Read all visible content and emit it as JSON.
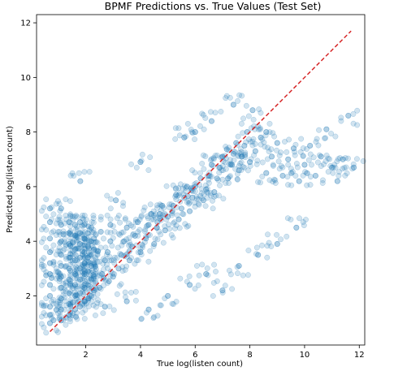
{
  "chart_data": {
    "type": "scatter",
    "title": "BPMF Predictions vs. True Values (Test Set)",
    "xlabel": "True log(listen count)",
    "ylabel": "Predicted log(listen count)",
    "xlim": [
      0.2,
      12.2
    ],
    "ylim": [
      0.2,
      12.3
    ],
    "xticks": [
      2,
      4,
      6,
      8,
      10,
      12
    ],
    "yticks": [
      2,
      4,
      6,
      8,
      10,
      12
    ],
    "xtick_labels": [
      "2",
      "4",
      "6",
      "8",
      "10",
      "12"
    ],
    "ytick_labels": [
      "2",
      "4",
      "6",
      "8",
      "10",
      "12"
    ],
    "grid": false,
    "legend": "none",
    "point_color": "#1f77b4",
    "point_alpha": 0.2,
    "reference_line": {
      "style": "dashed",
      "color": "#d62728",
      "x": [
        0.69,
        11.7
      ],
      "y": [
        0.69,
        11.7
      ]
    },
    "series": [
      {
        "description_points": [
          [
            0.69,
            1.0
          ],
          [
            0.69,
            1.3
          ],
          [
            0.69,
            1.6
          ],
          [
            0.69,
            2.0
          ],
          [
            0.69,
            2.4
          ],
          [
            0.69,
            2.8
          ],
          [
            0.69,
            3.2
          ],
          [
            0.69,
            3.6
          ],
          [
            0.69,
            4.1
          ],
          [
            0.69,
            4.7
          ],
          [
            0.69,
            5.2
          ],
          [
            1.1,
            1.1
          ],
          [
            1.1,
            1.5
          ],
          [
            1.1,
            1.9
          ],
          [
            1.1,
            2.3
          ],
          [
            1.1,
            2.7
          ],
          [
            1.1,
            3.1
          ],
          [
            1.1,
            3.5
          ],
          [
            1.1,
            4.0
          ],
          [
            1.1,
            4.6
          ],
          [
            1.1,
            5.2
          ],
          [
            1.39,
            1.3
          ],
          [
            1.39,
            1.7
          ],
          [
            1.39,
            2.1
          ],
          [
            1.39,
            2.6
          ],
          [
            1.39,
            3.0
          ],
          [
            1.39,
            3.4
          ],
          [
            1.39,
            3.9
          ],
          [
            1.39,
            4.3
          ],
          [
            1.39,
            4.7
          ],
          [
            1.61,
            1.5
          ],
          [
            1.61,
            2.0
          ],
          [
            1.61,
            2.4
          ],
          [
            1.61,
            2.8
          ],
          [
            1.61,
            3.3
          ],
          [
            1.61,
            3.7
          ],
          [
            1.61,
            4.2
          ],
          [
            1.61,
            4.6
          ],
          [
            1.79,
            1.6
          ],
          [
            1.79,
            2.1
          ],
          [
            1.79,
            2.6
          ],
          [
            1.79,
            3.0
          ],
          [
            1.79,
            3.4
          ],
          [
            1.79,
            3.9
          ],
          [
            1.79,
            4.3
          ],
          [
            1.79,
            4.7
          ],
          [
            1.95,
            1.8
          ],
          [
            1.95,
            2.3
          ],
          [
            1.95,
            2.8
          ],
          [
            1.95,
            3.2
          ],
          [
            1.95,
            3.6
          ],
          [
            1.95,
            4.1
          ],
          [
            1.95,
            4.6
          ],
          [
            2.08,
            1.9
          ],
          [
            2.08,
            2.4
          ],
          [
            2.08,
            2.9
          ],
          [
            2.08,
            3.4
          ],
          [
            2.08,
            3.8
          ],
          [
            2.08,
            4.3
          ],
          [
            2.2,
            2.0
          ],
          [
            2.2,
            2.6
          ],
          [
            2.2,
            3.1
          ],
          [
            2.2,
            3.5
          ],
          [
            2.2,
            4.0
          ],
          [
            2.2,
            4.5
          ],
          [
            2.3,
            2.2
          ],
          [
            2.3,
            2.7
          ],
          [
            2.3,
            3.2
          ],
          [
            2.3,
            3.7
          ],
          [
            2.3,
            4.1
          ],
          [
            2.5,
            2.3
          ],
          [
            2.6,
            2.8
          ],
          [
            2.7,
            3.3
          ],
          [
            2.8,
            3.6
          ],
          [
            2.9,
            4.0
          ],
          [
            2.9,
            4.6
          ],
          [
            3.0,
            2.7
          ],
          [
            3.2,
            3.0
          ],
          [
            3.3,
            3.5
          ],
          [
            3.4,
            4.0
          ],
          [
            3.5,
            4.5
          ],
          [
            3.6,
            3.3
          ],
          [
            3.7,
            3.8
          ],
          [
            3.8,
            4.2
          ],
          [
            3.9,
            4.7
          ],
          [
            4.0,
            3.6
          ],
          [
            4.2,
            4.1
          ],
          [
            4.3,
            4.6
          ],
          [
            4.4,
            5.0
          ],
          [
            4.5,
            3.9
          ],
          [
            4.6,
            4.5
          ],
          [
            4.7,
            5.0
          ],
          [
            4.8,
            5.3
          ],
          [
            4.9,
            4.4
          ],
          [
            5.0,
            4.9
          ],
          [
            5.2,
            5.3
          ],
          [
            5.3,
            5.7
          ],
          [
            5.4,
            4.8
          ],
          [
            5.5,
            5.2
          ],
          [
            5.6,
            5.6
          ],
          [
            5.7,
            6.0
          ],
          [
            5.8,
            5.1
          ],
          [
            5.9,
            5.6
          ],
          [
            6.0,
            6.0
          ],
          [
            6.2,
            6.3
          ],
          [
            6.3,
            5.5
          ],
          [
            6.4,
            5.9
          ],
          [
            6.5,
            6.4
          ],
          [
            6.6,
            6.8
          ],
          [
            6.7,
            5.8
          ],
          [
            6.8,
            6.3
          ],
          [
            6.9,
            6.7
          ],
          [
            7.0,
            7.1
          ],
          [
            7.2,
            6.3
          ],
          [
            7.3,
            6.8
          ],
          [
            7.4,
            7.2
          ],
          [
            7.5,
            7.6
          ],
          [
            7.6,
            6.6
          ],
          [
            7.7,
            7.1
          ],
          [
            7.8,
            7.5
          ],
          [
            7.9,
            8.0
          ],
          [
            8.0,
            6.9
          ],
          [
            8.2,
            7.3
          ],
          [
            8.4,
            7.8
          ],
          [
            8.6,
            6.5
          ],
          [
            8.8,
            7.1
          ],
          [
            9.0,
            7.6
          ],
          [
            9.2,
            6.4
          ],
          [
            9.4,
            7.0
          ],
          [
            9.6,
            7.4
          ],
          [
            9.8,
            6.2
          ],
          [
            10.0,
            6.8
          ],
          [
            10.2,
            7.5
          ],
          [
            10.4,
            6.4
          ],
          [
            10.6,
            7.1
          ],
          [
            10.8,
            8.1
          ],
          [
            11.0,
            6.7
          ],
          [
            11.2,
            6.2
          ],
          [
            11.4,
            7.0
          ],
          [
            11.6,
            8.6
          ],
          [
            11.8,
            6.7
          ],
          [
            1.8,
            6.2
          ],
          [
            3.1,
            5.5
          ],
          [
            4.0,
            6.9
          ],
          [
            5.6,
            7.8
          ],
          [
            6.0,
            8.0
          ],
          [
            6.6,
            8.4
          ],
          [
            7.4,
            9.0
          ],
          [
            8.1,
            8.8
          ],
          [
            8.6,
            8.0
          ],
          [
            2.7,
            1.6
          ],
          [
            3.5,
            1.8
          ],
          [
            4.3,
            1.5
          ],
          [
            5.0,
            2.0
          ],
          [
            5.8,
            2.4
          ],
          [
            6.4,
            2.8
          ],
          [
            7.0,
            2.2
          ],
          [
            7.6,
            3.1
          ],
          [
            8.3,
            3.5
          ],
          [
            9.0,
            3.9
          ],
          [
            9.7,
            4.5
          ]
        ]
      }
    ]
  }
}
